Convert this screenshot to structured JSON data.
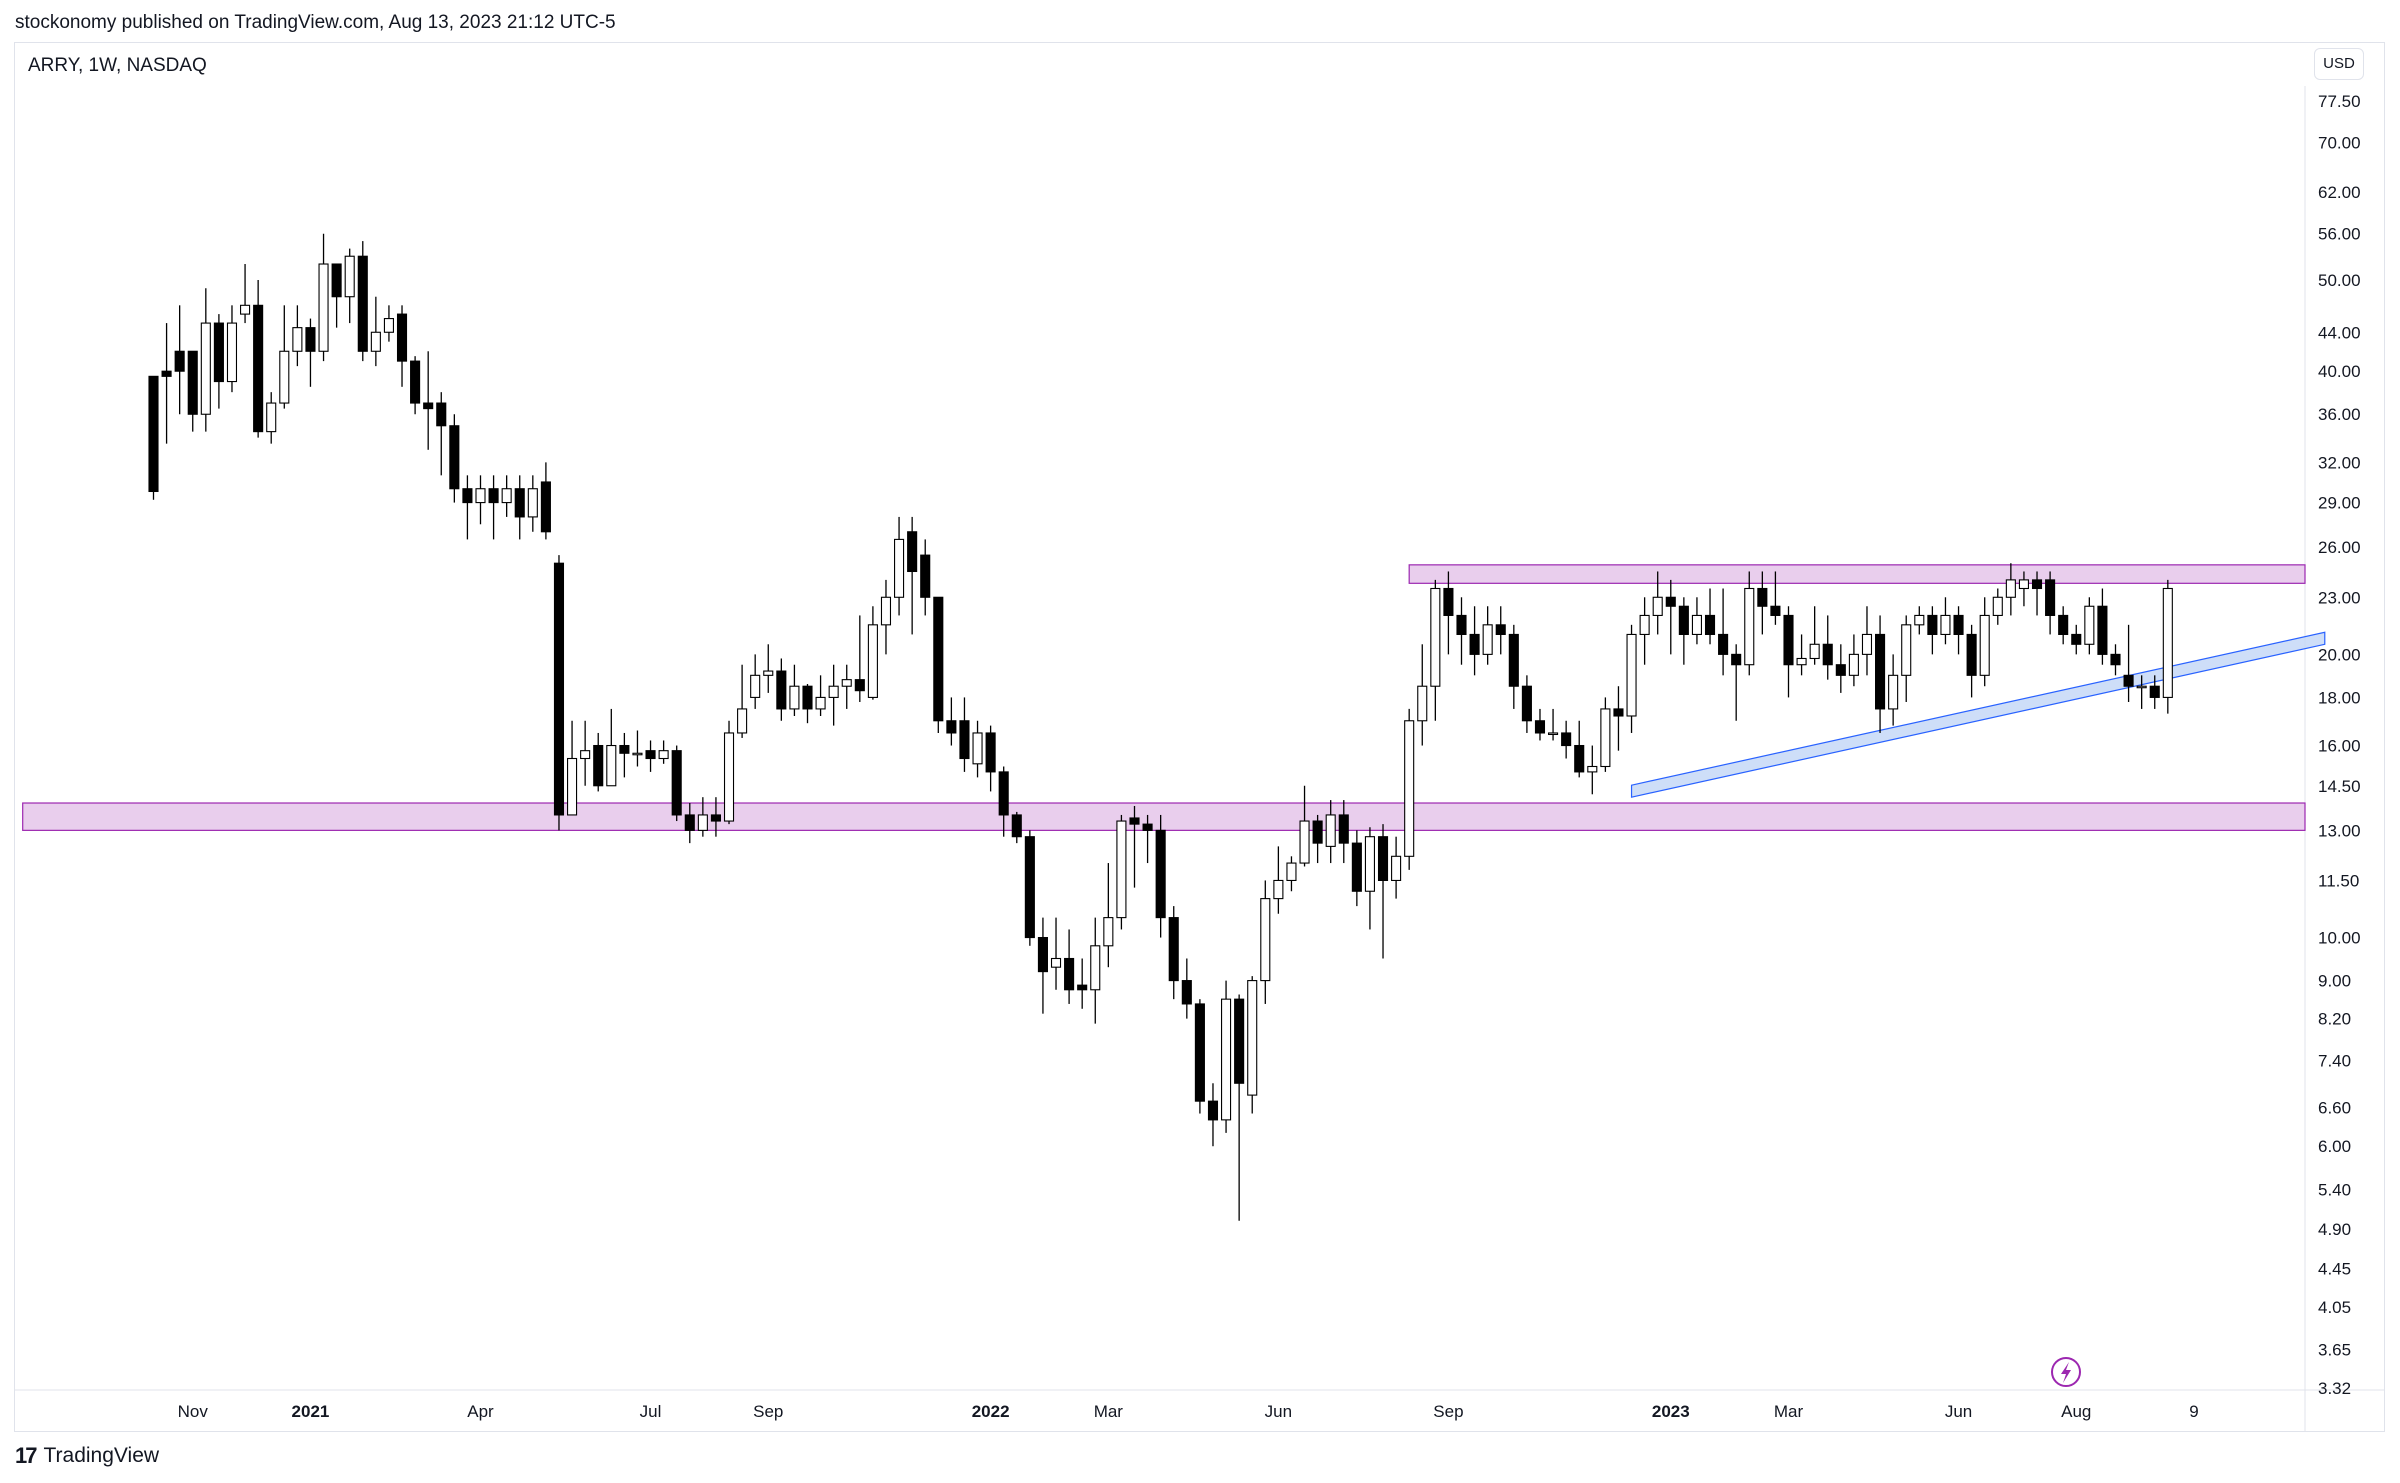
{
  "header": {
    "published": "stockonomy published on TradingView.com, Aug 13, 2023 21:12 UTC-5"
  },
  "symbol": {
    "label": "ARRY, 1W, NASDAQ"
  },
  "currency": {
    "label": "USD"
  },
  "footer": {
    "brand": "TradingView",
    "logo_glyph": "17"
  },
  "colors": {
    "up_fill": "#ffffff",
    "down_fill": "#000000",
    "zone_fill": "#e1bee7",
    "zone_border": "#9c27b0",
    "trend_fill": "#c5d8f7",
    "trend_border": "#2962ff",
    "flash": "#9c27b0"
  },
  "icons": {
    "flash": "lightning-bolt-icon"
  },
  "chart_data": {
    "type": "candlestick",
    "title": "ARRY, 1W, NASDAQ",
    "scale": "log",
    "ylim": [
      3.32,
      80
    ],
    "y_ticks": [
      77.5,
      70.0,
      62.0,
      56.0,
      50.0,
      44.0,
      40.0,
      36.0,
      32.0,
      29.0,
      26.0,
      23.0,
      20.0,
      18.0,
      16.0,
      14.5,
      13.0,
      11.5,
      10.0,
      9.0,
      8.2,
      7.4,
      6.6,
      6.0,
      5.4,
      4.9,
      4.45,
      4.05,
      3.65,
      3.32
    ],
    "y_tick_labels": [
      "77.50",
      "70.00",
      "62.00",
      "56.00",
      "50.00",
      "44.00",
      "40.00",
      "36.00",
      "32.00",
      "29.00",
      "26.00",
      "23.00",
      "20.00",
      "18.00",
      "16.00",
      "14.50",
      "13.00",
      "11.50",
      "10.00",
      "9.00",
      "8.20",
      "7.40",
      "6.60",
      "6.00",
      "5.40",
      "4.90",
      "4.45",
      "4.05",
      "3.65",
      "3.32"
    ],
    "x_labels": [
      {
        "label": "Nov",
        "index": 3,
        "bold": false
      },
      {
        "label": "2021",
        "index": 12,
        "bold": true
      },
      {
        "label": "Apr",
        "index": 25,
        "bold": false
      },
      {
        "label": "Jul",
        "index": 38,
        "bold": false
      },
      {
        "label": "Sep",
        "index": 47,
        "bold": false
      },
      {
        "label": "2022",
        "index": 64,
        "bold": true
      },
      {
        "label": "Mar",
        "index": 73,
        "bold": false
      },
      {
        "label": "Jun",
        "index": 86,
        "bold": false
      },
      {
        "label": "Sep",
        "index": 99,
        "bold": false
      },
      {
        "label": "2023",
        "index": 116,
        "bold": true
      },
      {
        "label": "Mar",
        "index": 125,
        "bold": false
      },
      {
        "label": "Jun",
        "index": 138,
        "bold": false
      },
      {
        "label": "Aug",
        "index": 147,
        "bold": false
      },
      {
        "label": "9",
        "index": 156,
        "bold": false
      }
    ],
    "candles": [
      [
        39.5,
        29.8,
        39.5,
        29.2
      ],
      [
        40.0,
        39.5,
        45.0,
        33.5
      ],
      [
        42.0,
        40.0,
        47.0,
        36.0
      ],
      [
        42.0,
        36.0,
        42.0,
        34.5
      ],
      [
        36.0,
        45.0,
        49.0,
        34.5
      ],
      [
        45.0,
        39.0,
        46.0,
        36.5
      ],
      [
        39.0,
        45.0,
        47.0,
        38.0
      ],
      [
        46.0,
        47.0,
        52.0,
        45.0
      ],
      [
        47.0,
        34.5,
        50.0,
        34.0
      ],
      [
        34.5,
        37.0,
        38.0,
        33.5
      ],
      [
        37.0,
        42.0,
        47.0,
        36.5
      ],
      [
        42.0,
        44.5,
        47.0,
        40.5
      ],
      [
        44.5,
        42.0,
        45.5,
        38.5
      ],
      [
        42.0,
        52.0,
        56.0,
        41.0
      ],
      [
        52.0,
        48.0,
        50.0,
        44.5
      ],
      [
        48.0,
        53.0,
        54.0,
        45.0
      ],
      [
        53.0,
        42.0,
        55.0,
        41.0
      ],
      [
        42.0,
        44.0,
        48.0,
        40.5
      ],
      [
        44.0,
        45.5,
        47.0,
        43.0
      ],
      [
        46.0,
        41.0,
        47.0,
        38.5
      ],
      [
        41.0,
        37.0,
        41.5,
        36.0
      ],
      [
        37.0,
        36.5,
        42.0,
        33.0
      ],
      [
        37.0,
        35.0,
        38.0,
        31.0
      ],
      [
        35.0,
        30.0,
        36.0,
        29.0
      ],
      [
        30.0,
        29.0,
        31.0,
        26.5
      ],
      [
        29.0,
        30.0,
        31.0,
        27.5
      ],
      [
        30.0,
        29.0,
        31.0,
        26.5
      ],
      [
        29.0,
        30.0,
        31.0,
        28.0
      ],
      [
        30.0,
        28.0,
        31.0,
        26.5
      ],
      [
        28.0,
        30.0,
        31.0,
        27.0
      ],
      [
        30.5,
        27.0,
        32.0,
        26.5
      ],
      [
        25.0,
        13.5,
        25.5,
        13.0
      ],
      [
        13.5,
        15.5,
        17.0,
        13.8
      ],
      [
        15.5,
        15.8,
        17.0,
        14.5
      ],
      [
        16.0,
        14.5,
        16.5,
        14.3
      ],
      [
        14.5,
        16.0,
        17.5,
        14.5
      ],
      [
        16.0,
        15.7,
        16.5,
        14.8
      ],
      [
        15.7,
        15.7,
        16.6,
        15.2
      ],
      [
        15.8,
        15.5,
        16.2,
        15.0
      ],
      [
        15.5,
        15.8,
        16.2,
        15.3
      ],
      [
        15.8,
        13.5,
        16.0,
        13.3
      ],
      [
        13.5,
        13.0,
        13.9,
        12.6
      ],
      [
        13.0,
        13.5,
        14.1,
        12.8
      ],
      [
        13.5,
        13.3,
        14.1,
        12.8
      ],
      [
        13.3,
        16.5,
        17.0,
        13.2
      ],
      [
        16.5,
        17.5,
        19.5,
        16.3
      ],
      [
        18.0,
        19.0,
        20.0,
        17.5
      ],
      [
        19.0,
        19.2,
        20.5,
        18.2
      ],
      [
        19.2,
        17.5,
        19.8,
        17.0
      ],
      [
        17.5,
        18.5,
        19.5,
        17.2
      ],
      [
        18.5,
        17.5,
        18.6,
        16.9
      ],
      [
        17.5,
        18.0,
        19.0,
        17.2
      ],
      [
        18.0,
        18.5,
        19.5,
        16.8
      ],
      [
        18.5,
        18.8,
        19.5,
        17.5
      ],
      [
        18.8,
        18.3,
        22.0,
        17.8
      ],
      [
        18.0,
        21.5,
        22.5,
        17.9
      ],
      [
        21.5,
        23.0,
        24.0,
        20.0
      ],
      [
        23.0,
        26.5,
        28.0,
        22.0
      ],
      [
        27.0,
        24.5,
        28.0,
        21.0
      ],
      [
        25.5,
        23.0,
        26.5,
        22.0
      ],
      [
        23.0,
        17.0,
        23.0,
        16.5
      ],
      [
        17.0,
        16.5,
        18.0,
        16.0
      ],
      [
        17.0,
        15.5,
        18.0,
        15.0
      ],
      [
        15.3,
        16.5,
        17.0,
        14.8
      ],
      [
        16.5,
        15.0,
        16.8,
        14.3
      ],
      [
        15.0,
        13.5,
        15.2,
        12.8
      ],
      [
        13.5,
        12.8,
        13.6,
        12.6
      ],
      [
        12.8,
        10.0,
        13.0,
        9.8
      ],
      [
        10.0,
        9.2,
        10.5,
        8.3
      ],
      [
        9.3,
        9.5,
        10.5,
        8.8
      ],
      [
        9.5,
        8.8,
        10.2,
        8.5
      ],
      [
        8.9,
        8.8,
        9.5,
        8.4
      ],
      [
        8.8,
        9.8,
        10.5,
        8.1
      ],
      [
        9.8,
        10.5,
        12.0,
        9.3
      ],
      [
        10.5,
        13.3,
        13.5,
        10.2
      ],
      [
        13.4,
        13.2,
        13.8,
        11.3
      ],
      [
        13.2,
        13.0,
        13.5,
        12.0
      ],
      [
        13.0,
        10.5,
        13.5,
        10.0
      ],
      [
        10.5,
        9.0,
        10.8,
        8.6
      ],
      [
        9.0,
        8.5,
        9.5,
        8.2
      ],
      [
        8.5,
        6.7,
        8.6,
        6.5
      ],
      [
        6.7,
        6.4,
        7.0,
        6.0
      ],
      [
        6.4,
        8.6,
        9.0,
        6.2
      ],
      [
        8.6,
        7.0,
        8.7,
        5.0
      ],
      [
        6.8,
        9.0,
        9.1,
        6.5
      ],
      [
        9.0,
        11.0,
        11.5,
        8.5
      ],
      [
        11.0,
        11.5,
        12.5,
        10.6
      ],
      [
        11.5,
        12.0,
        12.2,
        11.2
      ],
      [
        12.0,
        13.3,
        14.5,
        11.9
      ],
      [
        13.3,
        12.6,
        13.5,
        12.0
      ],
      [
        12.5,
        13.5,
        14.0,
        12.0
      ],
      [
        13.5,
        12.6,
        14.0,
        12.0
      ],
      [
        12.6,
        11.2,
        13.0,
        10.8
      ],
      [
        11.2,
        12.8,
        13.1,
        10.2
      ],
      [
        12.8,
        11.5,
        13.2,
        9.5
      ],
      [
        11.5,
        12.2,
        12.8,
        11.0
      ],
      [
        12.2,
        17.0,
        17.5,
        11.8
      ],
      [
        17.0,
        18.5,
        20.5,
        16.0
      ],
      [
        18.5,
        23.5,
        24.0,
        17.0
      ],
      [
        23.5,
        22.0,
        24.5,
        20.0
      ],
      [
        22.0,
        21.0,
        23.0,
        19.5
      ],
      [
        21.0,
        20.0,
        22.5,
        19.0
      ],
      [
        20.0,
        21.5,
        22.5,
        19.5
      ],
      [
        21.5,
        21.0,
        22.5,
        20.0
      ],
      [
        21.0,
        18.5,
        21.5,
        17.5
      ],
      [
        18.5,
        17.0,
        19.0,
        16.5
      ],
      [
        17.0,
        16.5,
        17.5,
        16.2
      ],
      [
        16.5,
        16.5,
        17.5,
        16.2
      ],
      [
        16.5,
        16.0,
        17.0,
        15.5
      ],
      [
        16.0,
        15.0,
        17.0,
        14.8
      ],
      [
        15.0,
        15.2,
        16.0,
        14.2
      ],
      [
        15.2,
        17.5,
        18.0,
        15.0
      ],
      [
        17.5,
        17.2,
        18.5,
        15.8
      ],
      [
        17.2,
        21.0,
        21.5,
        16.5
      ],
      [
        21.0,
        22.0,
        23.0,
        19.5
      ],
      [
        22.0,
        23.0,
        24.5,
        21.0
      ],
      [
        23.0,
        22.5,
        24.0,
        20.0
      ],
      [
        22.5,
        21.0,
        23.0,
        19.5
      ],
      [
        21.0,
        22.0,
        23.0,
        20.5
      ],
      [
        22.0,
        21.0,
        23.5,
        20.5
      ],
      [
        21.0,
        20.0,
        23.5,
        19.0
      ],
      [
        20.0,
        19.5,
        20.5,
        17.0
      ],
      [
        19.5,
        23.5,
        24.5,
        19.0
      ],
      [
        23.5,
        22.5,
        24.5,
        21.0
      ],
      [
        22.5,
        22.0,
        24.5,
        21.5
      ],
      [
        22.0,
        19.5,
        22.5,
        18.0
      ],
      [
        19.5,
        19.8,
        21.0,
        19.0
      ],
      [
        19.8,
        20.5,
        22.5,
        19.5
      ],
      [
        20.5,
        19.5,
        22.0,
        18.8
      ],
      [
        19.5,
        19.0,
        20.5,
        18.2
      ],
      [
        19.0,
        20.0,
        21.0,
        18.5
      ],
      [
        20.0,
        21.0,
        22.5,
        19.0
      ],
      [
        21.0,
        17.5,
        22.0,
        16.5
      ],
      [
        17.5,
        19.0,
        20.0,
        16.8
      ],
      [
        19.0,
        21.5,
        22.0,
        17.8
      ],
      [
        21.5,
        22.0,
        22.5,
        21.0
      ],
      [
        22.0,
        21.0,
        22.5,
        20.0
      ],
      [
        21.0,
        22.0,
        23.0,
        20.5
      ],
      [
        22.0,
        21.0,
        22.5,
        20.0
      ],
      [
        21.0,
        19.0,
        21.5,
        18.0
      ],
      [
        19.0,
        22.0,
        23.0,
        18.5
      ],
      [
        22.0,
        23.0,
        23.5,
        21.5
      ],
      [
        23.0,
        24.0,
        25.0,
        22.0
      ],
      [
        23.5,
        24.0,
        24.5,
        22.5
      ],
      [
        24.0,
        23.5,
        24.5,
        22.0
      ],
      [
        24.0,
        22.0,
        24.5,
        21.0
      ],
      [
        22.0,
        21.0,
        22.5,
        20.5
      ],
      [
        21.0,
        20.5,
        21.5,
        20.0
      ],
      [
        20.5,
        22.5,
        23.0,
        20.0
      ],
      [
        22.5,
        20.0,
        23.5,
        19.5
      ],
      [
        20.0,
        19.5,
        20.5,
        19.0
      ],
      [
        19.0,
        18.5,
        21.5,
        17.8
      ],
      [
        18.5,
        18.5,
        19.0,
        17.5
      ],
      [
        18.5,
        18.0,
        19.0,
        17.5
      ],
      [
        18.0,
        23.5,
        24.0,
        17.3
      ]
    ],
    "zones": [
      {
        "name": "resistance",
        "from_index": 96,
        "to_index": 171,
        "low": 23.8,
        "high": 24.9
      },
      {
        "name": "support",
        "from_index": -10,
        "to_index": 167,
        "low": 13.0,
        "high": 13.9
      }
    ],
    "trendline": {
      "from_index": 113,
      "to_index": 166,
      "start_value": 14.1,
      "end_value": 20.5
    }
  }
}
